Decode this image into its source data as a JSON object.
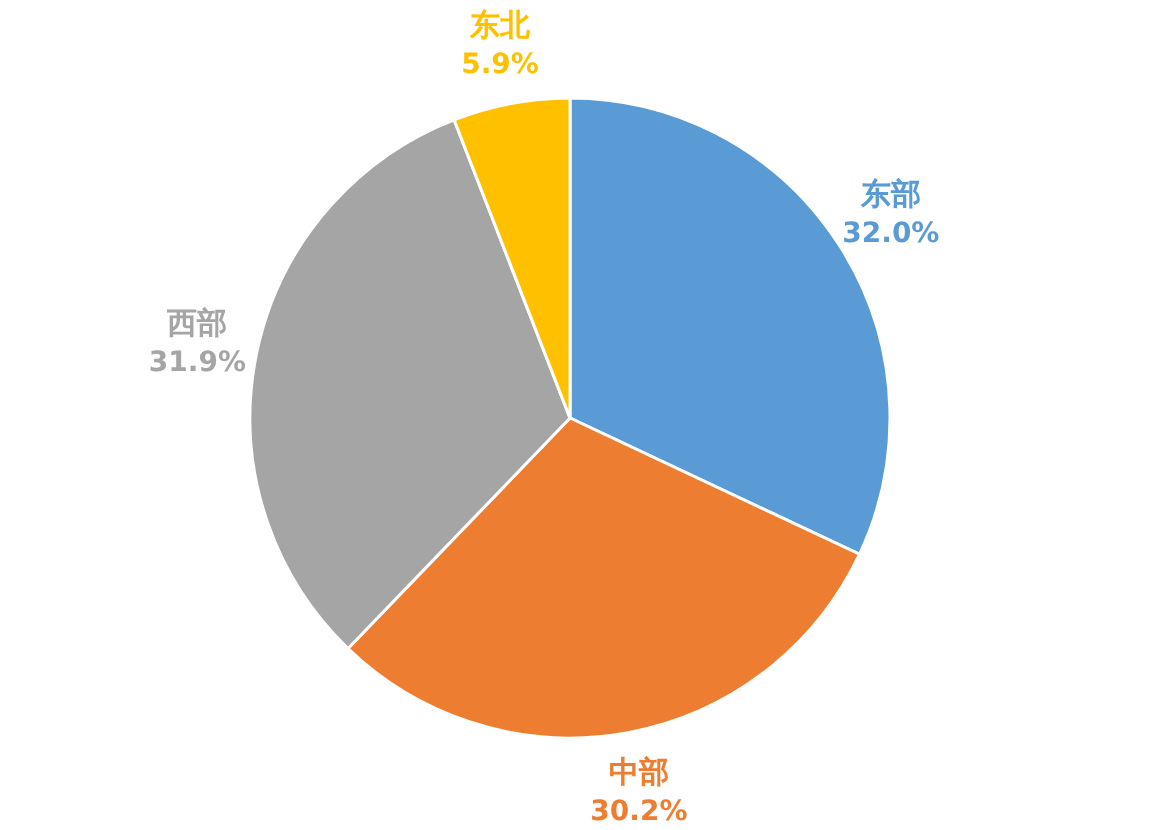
{
  "chart_data": {
    "type": "pie",
    "categories": [
      "东部",
      "中部",
      "西部",
      "东北"
    ],
    "values": [
      32.0,
      30.2,
      31.9,
      5.9
    ],
    "colors": [
      "#5b9bd5",
      "#ed7d31",
      "#a5a5a5",
      "#ffc000"
    ],
    "value_labels": [
      "32.0%",
      "30.2%",
      "31.9%",
      "5.9%"
    ],
    "legend": false
  }
}
